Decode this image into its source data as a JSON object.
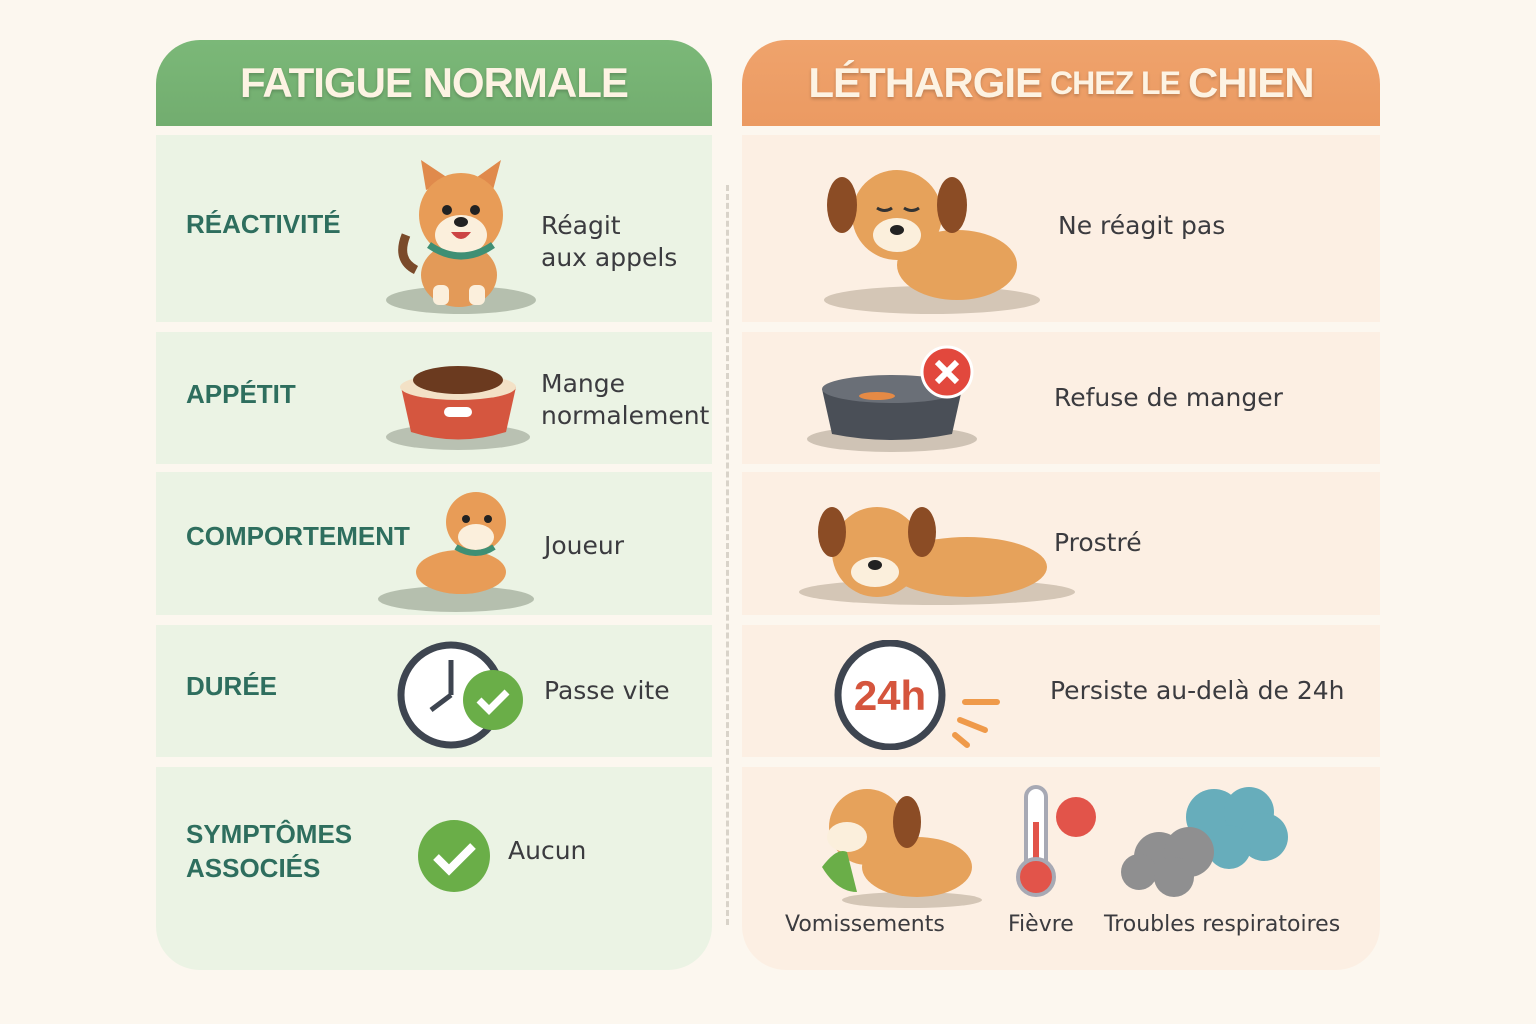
{
  "left": {
    "title": "FATIGUE NORMALE",
    "color": "#76b273",
    "rows": [
      {
        "label": "RÉACTIVITÉ",
        "desc_line1": "Réagit",
        "desc_line2": "aux appels",
        "icon": "happy-dog-icon"
      },
      {
        "label": "APPÉTIT",
        "desc_line1": "Mange",
        "desc_line2": "normalement",
        "icon": "full-food-bowl-icon"
      },
      {
        "label": "COMPORTEMENT",
        "desc_line1": "Joueur",
        "icon": "playful-dog-icon"
      },
      {
        "label": "DURÉE",
        "desc_line1": "Passe vite",
        "icon": "clock-check-icon"
      },
      {
        "label_line1": "SYMPTÔMES",
        "label_line2": "ASSOCIÉS",
        "desc_line1": "Aucun",
        "icon": "check-circle-icon"
      }
    ]
  },
  "right": {
    "title_big1": "LÉTHARGIE",
    "title_small": "CHEZ LE",
    "title_big2": "CHIEN",
    "color": "#ec9e66",
    "rows": [
      {
        "desc": "Ne réagit pas",
        "icon": "sad-dog-icon"
      },
      {
        "desc": "Refuse de manger",
        "icon": "empty-bowl-x-icon"
      },
      {
        "desc": "Prostré",
        "icon": "lying-dog-icon"
      },
      {
        "desc": "Persiste au-delà de 24h",
        "icon": "clock-24h-icon",
        "clock_text": "24h"
      },
      {
        "symptoms": [
          {
            "label": "Vomissements",
            "icon": "vomiting-dog-icon"
          },
          {
            "label": "Fièvre",
            "icon": "thermometer-icon"
          },
          {
            "label": "Troubles respiratoires",
            "icon": "breathing-clouds-icon"
          }
        ]
      }
    ]
  }
}
